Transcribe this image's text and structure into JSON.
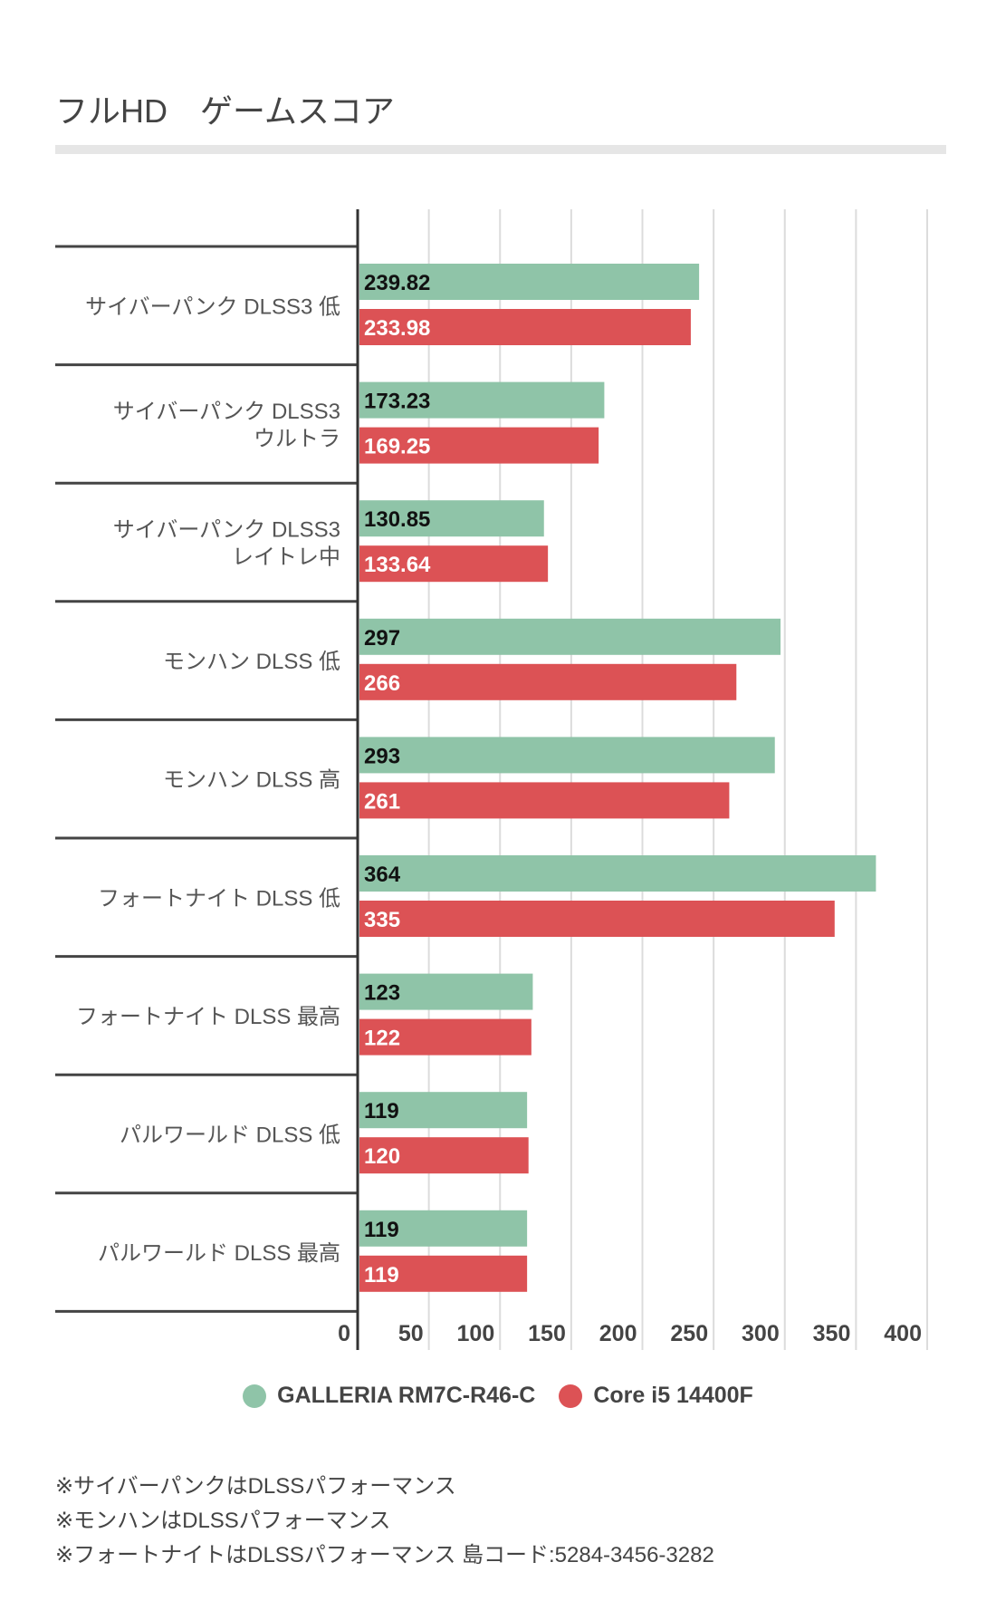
{
  "title": "フルHD　ゲームスコア",
  "chart_data": {
    "type": "bar",
    "orientation": "horizontal",
    "categories": [
      [
        "サイバーパンク DLSS3 低"
      ],
      [
        "サイバーパンク DLSS3",
        "ウルトラ"
      ],
      [
        "サイバーパンク DLSS3",
        "レイトレ中"
      ],
      [
        "モンハン DLSS 低"
      ],
      [
        "モンハン DLSS 高"
      ],
      [
        "フォートナイト DLSS 低"
      ],
      [
        "フォートナイト DLSS 最高"
      ],
      [
        "パルワールド DLSS 低"
      ],
      [
        "パルワールド DLSS 最高"
      ]
    ],
    "series": [
      {
        "name": "GALLERIA RM7C-R46-C",
        "color": "#8fc4a8",
        "label_color": "#111111",
        "values": [
          239.82,
          173.23,
          130.85,
          297,
          293,
          364,
          123,
          119,
          119
        ],
        "labels": [
          "239.82",
          "173.23",
          "130.85",
          "297",
          "293",
          "364",
          "123",
          "119",
          "119"
        ]
      },
      {
        "name": "Core i5 14400F",
        "color": "#dc5255",
        "label_color": "#ffffff",
        "values": [
          233.98,
          169.25,
          133.64,
          266,
          261,
          335,
          122,
          120,
          119
        ],
        "labels": [
          "233.98",
          "169.25",
          "133.64",
          "266",
          "261",
          "335",
          "122",
          "120",
          "119"
        ]
      }
    ],
    "xlim": [
      0,
      400
    ],
    "ticks": [
      "0",
      "50",
      "100",
      "150",
      "200",
      "250",
      "300",
      "350",
      "400"
    ],
    "grid": true,
    "legend": "bottom"
  },
  "notes": [
    "※サイバーパンクはDLSSパフォーマンス",
    "※モンハンはDLSSパフォーマンス",
    "※フォートナイトはDLSSパフォーマンス 島コード:5284-3456-3282"
  ]
}
